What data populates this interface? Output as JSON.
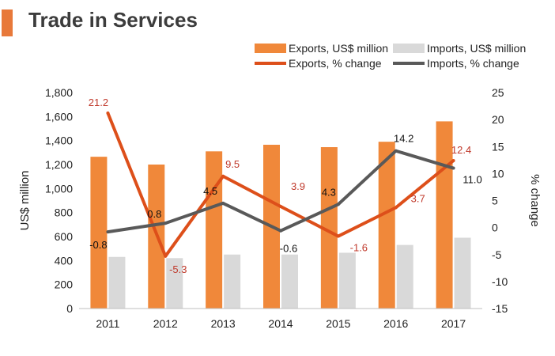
{
  "page": {
    "title": "Trade in Services"
  },
  "chart_data": {
    "type": "bar",
    "title": "Trade in Services",
    "categories": [
      "2011",
      "2012",
      "2013",
      "2014",
      "2015",
      "2016",
      "2017"
    ],
    "series": [
      {
        "name": "Exports, US$ million",
        "kind": "bar",
        "axis": "left",
        "color": "#f0883a",
        "values": [
          1265,
          1200,
          1310,
          1365,
          1345,
          1390,
          1560
        ]
      },
      {
        "name": "Imports, US$ million",
        "kind": "bar",
        "axis": "left",
        "color": "#d9d9d9",
        "values": [
          430,
          420,
          450,
          450,
          465,
          530,
          590
        ]
      },
      {
        "name": "Exports, % change",
        "kind": "line",
        "axis": "right",
        "color": "#dd4f1a",
        "label_color": "#c0392b",
        "values": [
          21.2,
          -5.3,
          9.5,
          3.9,
          -1.6,
          3.7,
          12.4
        ]
      },
      {
        "name": "Imports, % change",
        "kind": "line",
        "axis": "right",
        "color": "#595959",
        "label_color": "#111111",
        "values": [
          -0.8,
          0.8,
          4.5,
          -0.6,
          4.3,
          14.2,
          11.0
        ]
      }
    ],
    "ylabel": "US$ million",
    "ylim": [
      0,
      1800
    ],
    "yticks": [
      "0",
      "200",
      "400",
      "600",
      "800",
      "1,000",
      "1,200",
      "1,400",
      "1,600",
      "1,800"
    ],
    "y2label": "% change",
    "y2lim": [
      -15,
      25
    ],
    "y2ticks": [
      "-15",
      "-10",
      "-5",
      "0",
      "5",
      "10",
      "15",
      "20",
      "25"
    ],
    "line_labels": {
      "exports": [
        "21.2",
        "-5.3",
        "9.5",
        "3.9",
        "-1.6",
        "3.7",
        "12.4"
      ],
      "imports": [
        "-0.8",
        "0.8",
        "4.5",
        "-0.6",
        "4.3",
        "14.2",
        "11.0"
      ]
    },
    "legend_position": "top-right",
    "grid": false
  }
}
